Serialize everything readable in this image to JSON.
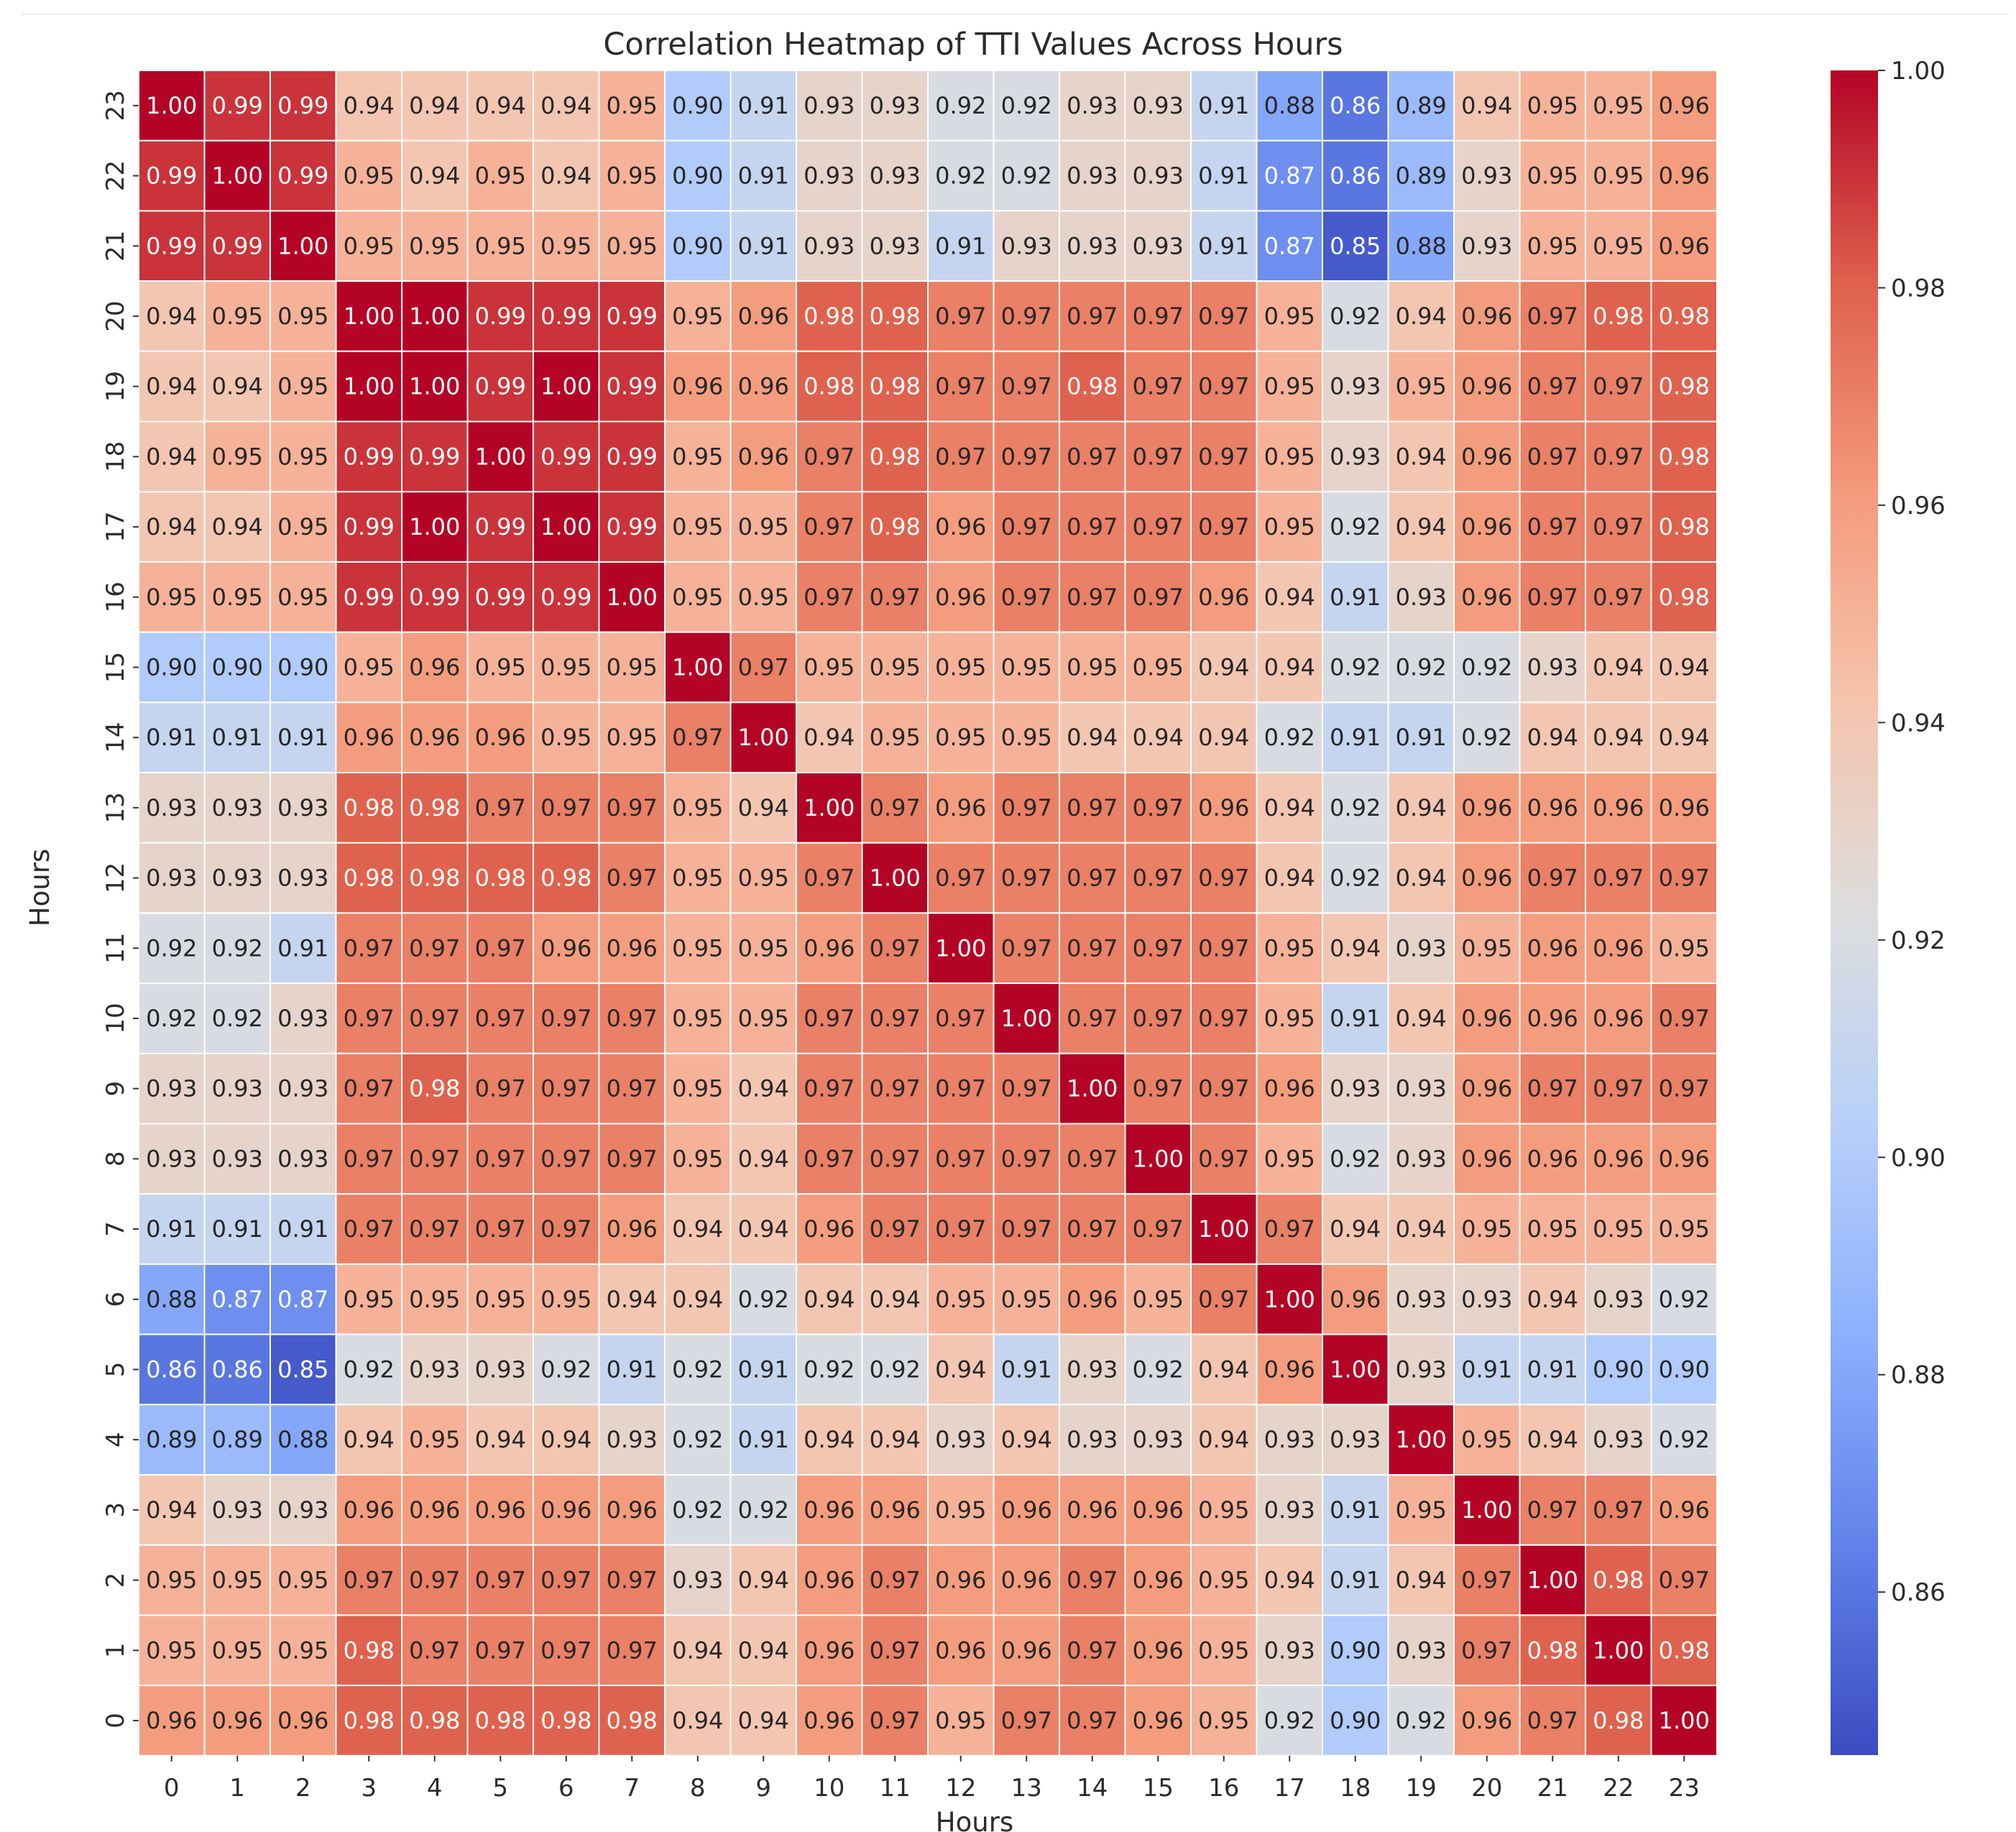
{
  "chart_data": {
    "type": "heatmap",
    "title": "Correlation Heatmap of TTI Values Across Hours",
    "xlabel": "Hours",
    "ylabel": "Hours",
    "x_categories": [
      "0",
      "1",
      "2",
      "3",
      "4",
      "5",
      "6",
      "7",
      "8",
      "9",
      "10",
      "11",
      "12",
      "13",
      "14",
      "15",
      "16",
      "17",
      "18",
      "19",
      "20",
      "21",
      "22",
      "23"
    ],
    "y_categories_top_to_bottom": [
      "23",
      "22",
      "21",
      "20",
      "19",
      "18",
      "17",
      "16",
      "15",
      "14",
      "13",
      "12",
      "11",
      "10",
      "9",
      "8",
      "7",
      "6",
      "5",
      "4",
      "3",
      "2",
      "1",
      "0"
    ],
    "values": [
      [
        "1.00",
        "0.99",
        "0.99",
        "0.94",
        "0.94",
        "0.94",
        "0.94",
        "0.95",
        "0.90",
        "0.91",
        "0.93",
        "0.93",
        "0.92",
        "0.92",
        "0.93",
        "0.93",
        "0.91",
        "0.88",
        "0.86",
        "0.89",
        "0.94",
        "0.95",
        "0.95",
        "0.96"
      ],
      [
        "0.99",
        "1.00",
        "0.99",
        "0.95",
        "0.94",
        "0.95",
        "0.94",
        "0.95",
        "0.90",
        "0.91",
        "0.93",
        "0.93",
        "0.92",
        "0.92",
        "0.93",
        "0.93",
        "0.91",
        "0.87",
        "0.86",
        "0.89",
        "0.93",
        "0.95",
        "0.95",
        "0.96"
      ],
      [
        "0.99",
        "0.99",
        "1.00",
        "0.95",
        "0.95",
        "0.95",
        "0.95",
        "0.95",
        "0.90",
        "0.91",
        "0.93",
        "0.93",
        "0.91",
        "0.93",
        "0.93",
        "0.93",
        "0.91",
        "0.87",
        "0.85",
        "0.88",
        "0.93",
        "0.95",
        "0.95",
        "0.96"
      ],
      [
        "0.94",
        "0.95",
        "0.95",
        "1.00",
        "1.00",
        "0.99",
        "0.99",
        "0.99",
        "0.95",
        "0.96",
        "0.98",
        "0.98",
        "0.97",
        "0.97",
        "0.97",
        "0.97",
        "0.97",
        "0.95",
        "0.92",
        "0.94",
        "0.96",
        "0.97",
        "0.98",
        "0.98"
      ],
      [
        "0.94",
        "0.94",
        "0.95",
        "1.00",
        "1.00",
        "0.99",
        "1.00",
        "0.99",
        "0.96",
        "0.96",
        "0.98",
        "0.98",
        "0.97",
        "0.97",
        "0.98",
        "0.97",
        "0.97",
        "0.95",
        "0.93",
        "0.95",
        "0.96",
        "0.97",
        "0.97",
        "0.98"
      ],
      [
        "0.94",
        "0.95",
        "0.95",
        "0.99",
        "0.99",
        "1.00",
        "0.99",
        "0.99",
        "0.95",
        "0.96",
        "0.97",
        "0.98",
        "0.97",
        "0.97",
        "0.97",
        "0.97",
        "0.97",
        "0.95",
        "0.93",
        "0.94",
        "0.96",
        "0.97",
        "0.97",
        "0.98"
      ],
      [
        "0.94",
        "0.94",
        "0.95",
        "0.99",
        "1.00",
        "0.99",
        "1.00",
        "0.99",
        "0.95",
        "0.95",
        "0.97",
        "0.98",
        "0.96",
        "0.97",
        "0.97",
        "0.97",
        "0.97",
        "0.95",
        "0.92",
        "0.94",
        "0.96",
        "0.97",
        "0.97",
        "0.98"
      ],
      [
        "0.95",
        "0.95",
        "0.95",
        "0.99",
        "0.99",
        "0.99",
        "0.99",
        "1.00",
        "0.95",
        "0.95",
        "0.97",
        "0.97",
        "0.96",
        "0.97",
        "0.97",
        "0.97",
        "0.96",
        "0.94",
        "0.91",
        "0.93",
        "0.96",
        "0.97",
        "0.97",
        "0.98"
      ],
      [
        "0.90",
        "0.90",
        "0.90",
        "0.95",
        "0.96",
        "0.95",
        "0.95",
        "0.95",
        "1.00",
        "0.97",
        "0.95",
        "0.95",
        "0.95",
        "0.95",
        "0.95",
        "0.95",
        "0.94",
        "0.94",
        "0.92",
        "0.92",
        "0.92",
        "0.93",
        "0.94",
        "0.94"
      ],
      [
        "0.91",
        "0.91",
        "0.91",
        "0.96",
        "0.96",
        "0.96",
        "0.95",
        "0.95",
        "0.97",
        "1.00",
        "0.94",
        "0.95",
        "0.95",
        "0.95",
        "0.94",
        "0.94",
        "0.94",
        "0.92",
        "0.91",
        "0.91",
        "0.92",
        "0.94",
        "0.94",
        "0.94"
      ],
      [
        "0.93",
        "0.93",
        "0.93",
        "0.98",
        "0.98",
        "0.97",
        "0.97",
        "0.97",
        "0.95",
        "0.94",
        "1.00",
        "0.97",
        "0.96",
        "0.97",
        "0.97",
        "0.97",
        "0.96",
        "0.94",
        "0.92",
        "0.94",
        "0.96",
        "0.96",
        "0.96",
        "0.96"
      ],
      [
        "0.93",
        "0.93",
        "0.93",
        "0.98",
        "0.98",
        "0.98",
        "0.98",
        "0.97",
        "0.95",
        "0.95",
        "0.97",
        "1.00",
        "0.97",
        "0.97",
        "0.97",
        "0.97",
        "0.97",
        "0.94",
        "0.92",
        "0.94",
        "0.96",
        "0.97",
        "0.97",
        "0.97"
      ],
      [
        "0.92",
        "0.92",
        "0.91",
        "0.97",
        "0.97",
        "0.97",
        "0.96",
        "0.96",
        "0.95",
        "0.95",
        "0.96",
        "0.97",
        "1.00",
        "0.97",
        "0.97",
        "0.97",
        "0.97",
        "0.95",
        "0.94",
        "0.93",
        "0.95",
        "0.96",
        "0.96",
        "0.95"
      ],
      [
        "0.92",
        "0.92",
        "0.93",
        "0.97",
        "0.97",
        "0.97",
        "0.97",
        "0.97",
        "0.95",
        "0.95",
        "0.97",
        "0.97",
        "0.97",
        "1.00",
        "0.97",
        "0.97",
        "0.97",
        "0.95",
        "0.91",
        "0.94",
        "0.96",
        "0.96",
        "0.96",
        "0.97"
      ],
      [
        "0.93",
        "0.93",
        "0.93",
        "0.97",
        "0.98",
        "0.97",
        "0.97",
        "0.97",
        "0.95",
        "0.94",
        "0.97",
        "0.97",
        "0.97",
        "0.97",
        "1.00",
        "0.97",
        "0.97",
        "0.96",
        "0.93",
        "0.93",
        "0.96",
        "0.97",
        "0.97",
        "0.97"
      ],
      [
        "0.93",
        "0.93",
        "0.93",
        "0.97",
        "0.97",
        "0.97",
        "0.97",
        "0.97",
        "0.95",
        "0.94",
        "0.97",
        "0.97",
        "0.97",
        "0.97",
        "0.97",
        "1.00",
        "0.97",
        "0.95",
        "0.92",
        "0.93",
        "0.96",
        "0.96",
        "0.96",
        "0.96"
      ],
      [
        "0.91",
        "0.91",
        "0.91",
        "0.97",
        "0.97",
        "0.97",
        "0.97",
        "0.96",
        "0.94",
        "0.94",
        "0.96",
        "0.97",
        "0.97",
        "0.97",
        "0.97",
        "0.97",
        "1.00",
        "0.97",
        "0.94",
        "0.94",
        "0.95",
        "0.95",
        "0.95",
        "0.95"
      ],
      [
        "0.88",
        "0.87",
        "0.87",
        "0.95",
        "0.95",
        "0.95",
        "0.95",
        "0.94",
        "0.94",
        "0.92",
        "0.94",
        "0.94",
        "0.95",
        "0.95",
        "0.96",
        "0.95",
        "0.97",
        "1.00",
        "0.96",
        "0.93",
        "0.93",
        "0.94",
        "0.93",
        "0.92"
      ],
      [
        "0.86",
        "0.86",
        "0.85",
        "0.92",
        "0.93",
        "0.93",
        "0.92",
        "0.91",
        "0.92",
        "0.91",
        "0.92",
        "0.92",
        "0.94",
        "0.91",
        "0.93",
        "0.92",
        "0.94",
        "0.96",
        "1.00",
        "0.93",
        "0.91",
        "0.91",
        "0.90",
        "0.90"
      ],
      [
        "0.89",
        "0.89",
        "0.88",
        "0.94",
        "0.95",
        "0.94",
        "0.94",
        "0.93",
        "0.92",
        "0.91",
        "0.94",
        "0.94",
        "0.93",
        "0.94",
        "0.93",
        "0.93",
        "0.94",
        "0.93",
        "0.93",
        "1.00",
        "0.95",
        "0.94",
        "0.93",
        "0.92"
      ],
      [
        "0.94",
        "0.93",
        "0.93",
        "0.96",
        "0.96",
        "0.96",
        "0.96",
        "0.96",
        "0.92",
        "0.92",
        "0.96",
        "0.96",
        "0.95",
        "0.96",
        "0.96",
        "0.96",
        "0.95",
        "0.93",
        "0.91",
        "0.95",
        "1.00",
        "0.97",
        "0.97",
        "0.96"
      ],
      [
        "0.95",
        "0.95",
        "0.95",
        "0.97",
        "0.97",
        "0.97",
        "0.97",
        "0.97",
        "0.93",
        "0.94",
        "0.96",
        "0.97",
        "0.96",
        "0.96",
        "0.97",
        "0.96",
        "0.95",
        "0.94",
        "0.91",
        "0.94",
        "0.97",
        "1.00",
        "0.98",
        "0.97"
      ],
      [
        "0.95",
        "0.95",
        "0.95",
        "0.98",
        "0.97",
        "0.97",
        "0.97",
        "0.97",
        "0.94",
        "0.94",
        "0.96",
        "0.97",
        "0.96",
        "0.96",
        "0.97",
        "0.96",
        "0.95",
        "0.93",
        "0.90",
        "0.93",
        "0.97",
        "0.98",
        "1.00",
        "0.98"
      ],
      [
        "0.96",
        "0.96",
        "0.96",
        "0.98",
        "0.98",
        "0.98",
        "0.98",
        "0.98",
        "0.94",
        "0.94",
        "0.96",
        "0.97",
        "0.95",
        "0.97",
        "0.97",
        "0.96",
        "0.95",
        "0.92",
        "0.90",
        "0.92",
        "0.96",
        "0.97",
        "0.98",
        "1.00"
      ]
    ],
    "colorbar": {
      "colormap": "coolwarm",
      "vmin": 0.845,
      "vmax": 1.0,
      "ticks": [
        "1.00",
        "0.98",
        "0.96",
        "0.94",
        "0.92",
        "0.90",
        "0.88",
        "0.86"
      ]
    },
    "cell_gridlines": "white"
  }
}
